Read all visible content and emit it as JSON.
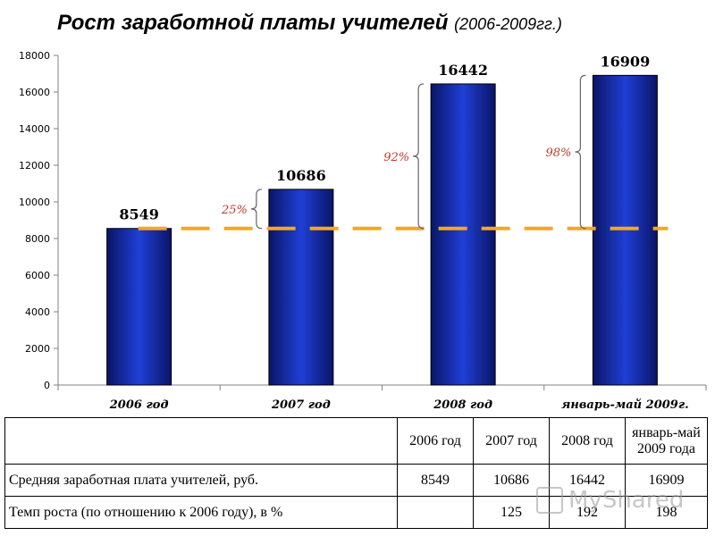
{
  "title": {
    "main": "Рост заработной платы учителей",
    "sub": "(2006-2009гг.)"
  },
  "chart_data": {
    "type": "bar",
    "categories": [
      "2006 год",
      "2007 год",
      "2008 год",
      "январь-май 2009г."
    ],
    "values": [
      8549,
      10686,
      16442,
      16909
    ],
    "value_labels": [
      "8549",
      "10686",
      "16442",
      "16909"
    ],
    "ylim": [
      0,
      18000
    ],
    "yticks": [
      0,
      2000,
      4000,
      6000,
      8000,
      10000,
      12000,
      14000,
      16000,
      18000
    ],
    "reference_line": 8549,
    "growth_annotations": [
      {
        "category_index": 1,
        "label": "25%"
      },
      {
        "category_index": 2,
        "label": "92%"
      },
      {
        "category_index": 3,
        "label": "98%"
      }
    ],
    "colors": {
      "bar": "#1f3fd6",
      "bar_dark": "#0a1566",
      "reference_line": "#f5a623",
      "annotation": "#c0392b"
    }
  },
  "table": {
    "header": [
      "",
      "2006 год",
      "2007 год",
      "2008 год",
      "январь-май 2009 года"
    ],
    "rows": [
      {
        "label": "Средняя заработная плата учителей, руб.",
        "values": [
          "8549",
          "10686",
          "16442",
          "16909"
        ]
      },
      {
        "label": "Темп роста (по отношению к 2006 году), в %",
        "values": [
          "",
          "125",
          "192",
          "198"
        ]
      }
    ]
  },
  "watermark": {
    "text": "MyShared",
    "icon": "presentation-icon"
  }
}
